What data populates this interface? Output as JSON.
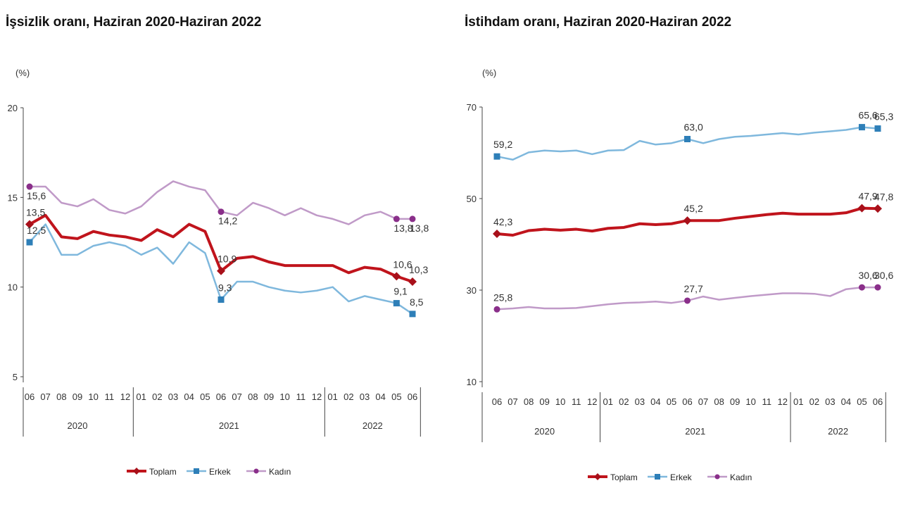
{
  "chart_data": [
    {
      "type": "line",
      "title": "İşsizlik oranı, Haziran 2020-Haziran 2022",
      "ylabel": "(%)",
      "ylim": [
        5,
        20
      ],
      "yticks": [
        "5",
        "10",
        "15",
        "20"
      ],
      "x": [
        "06",
        "07",
        "08",
        "09",
        "10",
        "11",
        "12",
        "01",
        "02",
        "03",
        "04",
        "05",
        "06",
        "07",
        "08",
        "09",
        "10",
        "11",
        "12",
        "01",
        "02",
        "03",
        "04",
        "05",
        "06"
      ],
      "years": [
        {
          "label": "2020",
          "months": 7
        },
        {
          "label": "2021",
          "months": 12
        },
        {
          "label": "2022",
          "months": 6
        }
      ],
      "labeled_indices": [
        0,
        12,
        23,
        24
      ],
      "series": [
        {
          "name": "Toplam",
          "color": "#c0141c",
          "values": [
            13.5,
            14.0,
            12.8,
            12.7,
            13.1,
            12.9,
            12.8,
            12.6,
            13.2,
            12.8,
            13.5,
            13.1,
            10.9,
            11.6,
            11.7,
            11.4,
            11.2,
            11.2,
            11.2,
            11.2,
            10.8,
            11.1,
            11.0,
            10.6,
            10.3
          ],
          "labels": [
            "13,5",
            "10,9",
            "10,6",
            "10,3"
          ]
        },
        {
          "name": "Erkek",
          "color": "#7fb8dd",
          "values": [
            12.5,
            13.5,
            11.8,
            11.8,
            12.3,
            12.5,
            12.3,
            11.8,
            12.2,
            11.3,
            12.5,
            11.9,
            9.3,
            10.3,
            10.3,
            10.0,
            9.8,
            9.7,
            9.8,
            10.0,
            9.2,
            9.5,
            9.3,
            9.1,
            8.5
          ],
          "labels": [
            "12,5",
            "9,3",
            "9,1",
            "8,5"
          ]
        },
        {
          "name": "Kadın",
          "color": "#c09ac8",
          "values": [
            15.6,
            15.6,
            14.7,
            14.5,
            14.9,
            14.3,
            14.1,
            14.5,
            15.3,
            15.9,
            15.6,
            15.4,
            14.2,
            14.0,
            14.7,
            14.4,
            14.0,
            14.4,
            14.0,
            13.8,
            13.5,
            14.0,
            14.2,
            13.8,
            13.8
          ],
          "labels": [
            "15,6",
            "14,2",
            "13,8",
            "13,8"
          ]
        }
      ],
      "legend": "bottom"
    },
    {
      "type": "line",
      "title": "İstihdam oranı, Haziran 2020-Haziran 2022",
      "ylabel": "(%)",
      "ylim": [
        10,
        70
      ],
      "yticks": [
        "10",
        "30",
        "50",
        "70"
      ],
      "x": [
        "06",
        "07",
        "08",
        "09",
        "10",
        "11",
        "12",
        "01",
        "02",
        "03",
        "04",
        "05",
        "06",
        "07",
        "08",
        "09",
        "10",
        "11",
        "12",
        "01",
        "02",
        "03",
        "04",
        "05",
        "06"
      ],
      "years": [
        {
          "label": "2020",
          "months": 7
        },
        {
          "label": "2021",
          "months": 12
        },
        {
          "label": "2022",
          "months": 6
        }
      ],
      "labeled_indices": [
        0,
        12,
        23,
        24
      ],
      "series": [
        {
          "name": "Toplam",
          "color": "#c0141c",
          "values": [
            42.3,
            42.0,
            43.0,
            43.3,
            43.1,
            43.3,
            42.9,
            43.5,
            43.7,
            44.5,
            44.3,
            44.5,
            45.2,
            45.2,
            45.2,
            45.7,
            46.1,
            46.5,
            46.8,
            46.6,
            46.6,
            46.6,
            46.9,
            47.9,
            47.8
          ],
          "labels": [
            "42,3",
            "45,2",
            "47,9",
            "47,8"
          ]
        },
        {
          "name": "Erkek",
          "color": "#7fb8dd",
          "values": [
            59.2,
            58.5,
            60.1,
            60.5,
            60.3,
            60.5,
            59.7,
            60.5,
            60.6,
            62.6,
            61.8,
            62.1,
            63.0,
            62.1,
            63.0,
            63.5,
            63.7,
            64.0,
            64.3,
            64.0,
            64.4,
            64.7,
            65.0,
            65.6,
            65.3
          ],
          "labels": [
            "59,2",
            "63,0",
            "65,6",
            "65,3"
          ]
        },
        {
          "name": "Kadın",
          "color": "#c09ac8",
          "values": [
            25.8,
            26.0,
            26.3,
            26.0,
            26.0,
            26.1,
            26.5,
            26.9,
            27.2,
            27.3,
            27.5,
            27.2,
            27.7,
            28.6,
            27.9,
            28.3,
            28.7,
            29.0,
            29.3,
            29.3,
            29.2,
            28.7,
            30.2,
            30.6,
            30.6
          ],
          "labels": [
            "25,8",
            "27,7",
            "30,6",
            "30,6"
          ]
        }
      ],
      "legend": "bottom"
    }
  ]
}
